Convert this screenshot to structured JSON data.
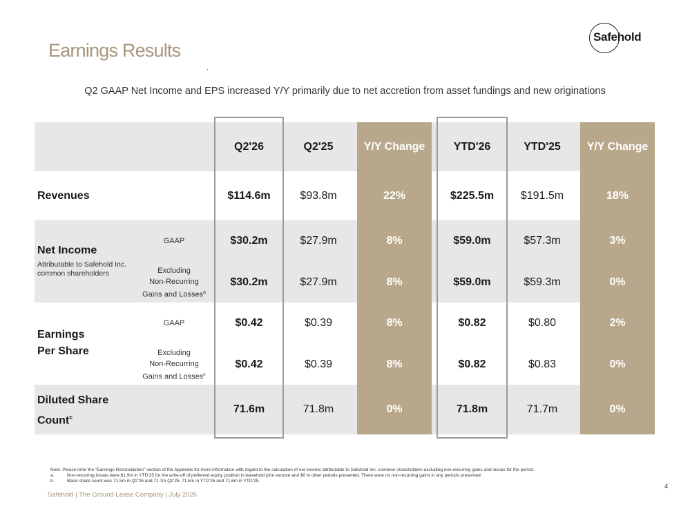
{
  "title": "Earnings Results",
  "logo_text": "Safehold",
  "subtitle": "Q2 GAAP Net Income and EPS increased Y/Y primarily due to net accretion from asset fundings and new originations",
  "columns": [
    "Q2'26",
    "Q2'25",
    "Y/Y Change",
    "YTD'26",
    "YTD'25",
    "Y/Y Change"
  ],
  "rows": {
    "revenues": {
      "label": "Revenues",
      "values": [
        "$114.6m",
        "$93.8m",
        "22%",
        "$225.5m",
        "$191.5m",
        "18%"
      ]
    },
    "net_income": {
      "label": "Net Income",
      "sublabel": "Attributable to Safehold Inc. common shareholders",
      "gaap_label": "GAAP",
      "gaap_values": [
        "$30.2m",
        "$27.9m",
        "8%",
        "$59.0m",
        "$57.3m",
        "3%"
      ],
      "excl_label_1": "Excluding",
      "excl_label_2": "Non-Recurring",
      "excl_label_3": "Gains and Losses",
      "excl_sup": "a",
      "excl_values": [
        "$30.2m",
        "$27.9m",
        "8%",
        "$59.0m",
        "$59.3m",
        "0%"
      ]
    },
    "eps": {
      "label_1": "Earnings",
      "label_2": "Per Share",
      "gaap_label": "GAAP",
      "gaap_values": [
        "$0.42",
        "$0.39",
        "8%",
        "$0.82",
        "$0.80",
        "2%"
      ],
      "excl_label_1": "Excluding",
      "excl_label_2": "Non-Recurring",
      "excl_label_3": "Gains and Losses",
      "excl_sup": "c",
      "excl_values": [
        "$0.42",
        "$0.39",
        "8%",
        "$0.82",
        "$0.83",
        "0%"
      ]
    },
    "diluted": {
      "label_1": "Diluted Share",
      "label_2": "Count",
      "sup": "c",
      "values": [
        "71.6m",
        "71.8m",
        "0%",
        "71.8m",
        "71.7m",
        "0%"
      ]
    }
  },
  "notes": {
    "note": "Note: Please refer the “Earnings Reconciliation” section of the Appendix for more information with regard to the calculation of net income attributable to Safehold Inc. common shareholders excluding non-recurring gains and losses for the period.",
    "a_marker": "a.",
    "a": "Non-recurring losses were $1.9m in YTD’25 for the write-off of preferred equity position in leasehold joint venture and $0 in other periods presented. There were no non-recurring gains in any periods presented.",
    "b_marker": "b.",
    "b": "Basic share count was 71.5m in Q2’26 and 71.7m Q2’25, 71.6m in YTD’26 and 71.6m in YTD’25."
  },
  "footer": "Safehold | The Ground Lease Company | July 2026",
  "page_number": "4",
  "colors": {
    "accent_tan": "#b8a78b",
    "title_tan": "#a7957c",
    "band_gray": "#e8e7e6",
    "frame_gray": "#9a9a9a"
  }
}
